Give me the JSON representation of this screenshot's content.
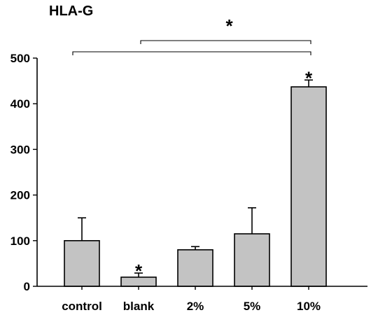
{
  "chart_data": {
    "type": "bar",
    "title": "HLA-G",
    "xlabel": "",
    "ylabel": "",
    "ylim": [
      0,
      500
    ],
    "yticks": [
      0,
      100,
      200,
      300,
      400,
      500
    ],
    "categories": [
      "control",
      "blank",
      "2%",
      "5%",
      "10%"
    ],
    "values": [
      100,
      20,
      80,
      115,
      437
    ],
    "errors": [
      50,
      9,
      7,
      57,
      15
    ],
    "bar_color": "#c3c3c3",
    "significance": [
      {
        "category": "blank",
        "label": "*"
      },
      {
        "category": "10%",
        "label": "*"
      }
    ],
    "brackets": [
      {
        "from": "control",
        "to": "10%",
        "label": ""
      },
      {
        "from": "blank",
        "to": "10%",
        "label": "*"
      }
    ],
    "grid": false,
    "legend": "none"
  }
}
